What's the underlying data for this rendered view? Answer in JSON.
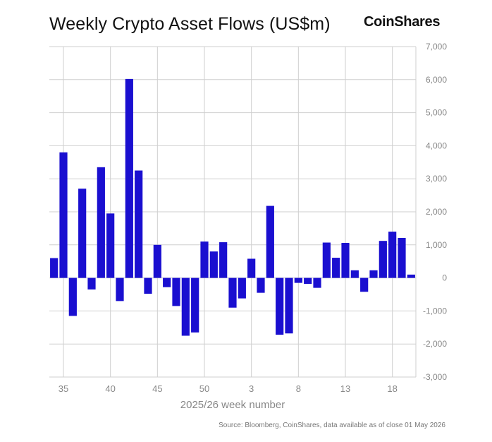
{
  "title": "Weekly Crypto Asset Flows (US$m)",
  "brand": "CoinShares",
  "source": "Source: Bloomberg, CoinShares, data available as of close 01 May 2026",
  "colors": {
    "bar": "#1a0fd0",
    "grid": "#cfcfcf",
    "tick_text": "#888888"
  },
  "chart_data": {
    "type": "bar",
    "title": "Weekly Crypto Asset Flows (US$m)",
    "xlabel": "2025/26 week number",
    "ylabel": "",
    "ylim": [
      -3000,
      7000
    ],
    "yticks": [
      -3000,
      -2000,
      -1000,
      0,
      1000,
      2000,
      3000,
      4000,
      5000,
      6000,
      7000
    ],
    "yticklabels": [
      "-3,000",
      "-2,000",
      "-1,000",
      "0",
      "1,000",
      "2,000",
      "3,000",
      "4,000",
      "5,000",
      "6,000",
      "7,000"
    ],
    "grid": true,
    "categories": [
      34,
      35,
      36,
      37,
      38,
      39,
      40,
      41,
      42,
      43,
      44,
      45,
      46,
      47,
      48,
      49,
      50,
      51,
      52,
      1,
      2,
      3,
      4,
      5,
      6,
      7,
      8,
      9,
      10,
      11,
      12,
      13,
      14,
      15,
      16,
      17,
      18,
      19,
      20
    ],
    "xticklabels": [
      "35",
      "40",
      "45",
      "50",
      "3",
      "8",
      "13",
      "18"
    ],
    "xtick_indices": [
      1,
      6,
      11,
      16,
      21,
      26,
      31,
      36
    ],
    "values": [
      600,
      3800,
      -1150,
      2700,
      -350,
      3350,
      1950,
      -700,
      6020,
      3250,
      -480,
      1000,
      -280,
      -850,
      -1750,
      -1650,
      1100,
      800,
      1080,
      -900,
      -620,
      580,
      -450,
      2180,
      -1720,
      -1680,
      -150,
      -180,
      -300,
      1070,
      610,
      1060,
      230,
      -420,
      230,
      1120,
      1400,
      1210,
      100
    ]
  }
}
